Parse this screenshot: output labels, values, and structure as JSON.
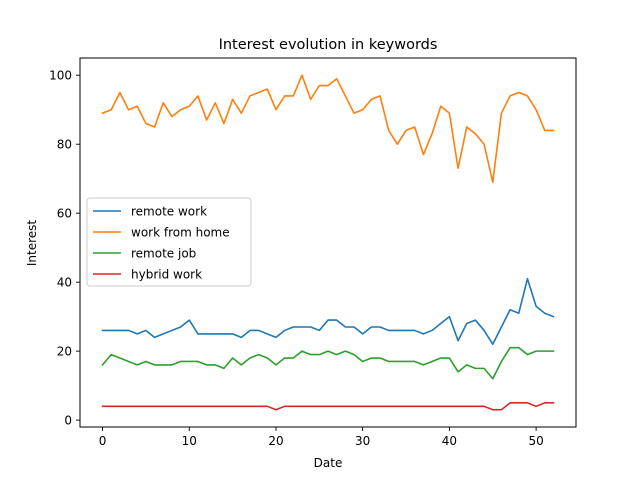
{
  "chart_data": {
    "type": "line",
    "title": "Interest evolution in keywords",
    "xlabel": "Date",
    "ylabel": "Interest",
    "xlim": [
      -2.6,
      54.6
    ],
    "ylim": [
      -2,
      105
    ],
    "xticks": [
      0,
      10,
      20,
      30,
      40,
      50
    ],
    "yticks": [
      0,
      20,
      40,
      60,
      80,
      100
    ],
    "legend_position": "center-left",
    "series": [
      {
        "name": "remote work",
        "color": "#1f77b4",
        "values": [
          26,
          26,
          26,
          26,
          25,
          26,
          24,
          25,
          26,
          27,
          29,
          25,
          25,
          25,
          25,
          25,
          24,
          26,
          26,
          25,
          24,
          26,
          27,
          27,
          27,
          26,
          29,
          29,
          27,
          27,
          25,
          27,
          27,
          26,
          26,
          26,
          26,
          25,
          26,
          28,
          30,
          23,
          28,
          29,
          26,
          22,
          27,
          32,
          31,
          41,
          33,
          31,
          30
        ]
      },
      {
        "name": "work from home",
        "color": "#ff7f0e",
        "values": [
          89,
          90,
          95,
          90,
          91,
          86,
          85,
          92,
          88,
          90,
          91,
          94,
          87,
          92,
          86,
          93,
          89,
          94,
          95,
          96,
          90,
          94,
          94,
          100,
          93,
          97,
          97,
          99,
          94,
          89,
          90,
          93,
          94,
          84,
          80,
          84,
          85,
          77,
          83,
          91,
          89,
          73,
          85,
          83,
          80,
          69,
          89,
          94,
          95,
          94,
          90,
          84,
          84
        ]
      },
      {
        "name": "remote job",
        "color": "#2ca02c",
        "values": [
          16,
          19,
          18,
          17,
          16,
          17,
          16,
          16,
          16,
          17,
          17,
          17,
          16,
          16,
          15,
          18,
          16,
          18,
          19,
          18,
          16,
          18,
          18,
          20,
          19,
          19,
          20,
          19,
          20,
          19,
          17,
          18,
          18,
          17,
          17,
          17,
          17,
          16,
          17,
          18,
          18,
          14,
          16,
          15,
          15,
          12,
          17,
          21,
          21,
          19,
          20,
          20,
          20
        ]
      },
      {
        "name": "hybrid work",
        "color": "#d62728",
        "values": [
          4,
          4,
          4,
          4,
          4,
          4,
          4,
          4,
          4,
          4,
          4,
          4,
          4,
          4,
          4,
          4,
          4,
          4,
          4,
          4,
          3,
          4,
          4,
          4,
          4,
          4,
          4,
          4,
          4,
          4,
          4,
          4,
          4,
          4,
          4,
          4,
          4,
          4,
          4,
          4,
          4,
          4,
          4,
          4,
          4,
          3,
          3,
          5,
          5,
          5,
          4,
          5,
          5
        ]
      }
    ]
  }
}
